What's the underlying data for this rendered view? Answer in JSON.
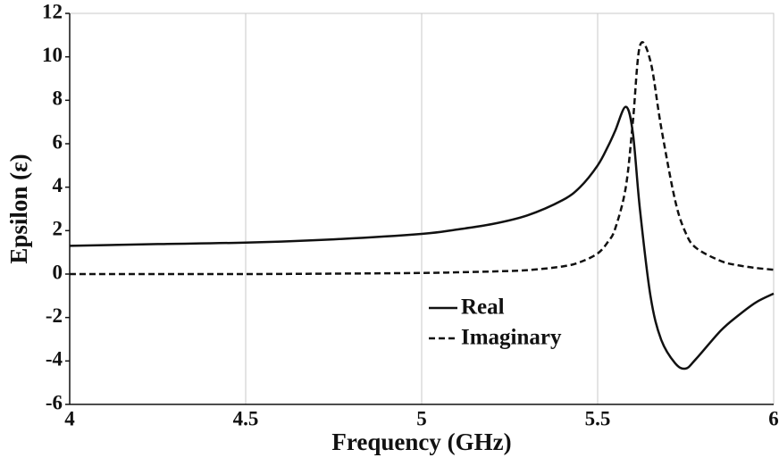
{
  "chart_data": {
    "type": "line",
    "xlabel": "Frequency (GHz)",
    "ylabel": "Epsilon (ε)",
    "x": [
      4,
      4.25,
      4.5,
      4.75,
      5,
      5.1,
      5.2,
      5.3,
      5.4,
      5.45,
      5.5,
      5.53,
      5.55,
      5.58,
      5.6,
      5.62,
      5.65,
      5.68,
      5.72,
      5.75,
      5.78,
      5.85,
      5.9,
      5.95,
      6
    ],
    "series": [
      {
        "name": "Real",
        "color": "#111111",
        "dash": false,
        "values": [
          1.3,
          1.38,
          1.45,
          1.6,
          1.85,
          2.05,
          2.3,
          2.7,
          3.4,
          4.0,
          5.0,
          5.9,
          6.6,
          7.7,
          6.5,
          3.0,
          -1.0,
          -3.0,
          -4.1,
          -4.35,
          -3.9,
          -2.6,
          -1.9,
          -1.3,
          -0.9
        ]
      },
      {
        "name": "Imaginary",
        "color": "#111111",
        "dash": true,
        "values": [
          0,
          0,
          0,
          0.02,
          0.05,
          0.08,
          0.12,
          0.18,
          0.35,
          0.55,
          0.95,
          1.5,
          2.1,
          4.0,
          7.0,
          10.5,
          9.8,
          6.8,
          3.4,
          1.9,
          1.2,
          0.6,
          0.4,
          0.28,
          0.2
        ]
      }
    ],
    "xlim": [
      4,
      6
    ],
    "xticks": [
      4,
      4.5,
      5,
      5.5,
      6
    ],
    "ylim": [
      -6,
      12
    ],
    "yticks": [
      -6,
      -4,
      -2,
      0,
      2,
      4,
      6,
      8,
      10,
      12
    ],
    "grid": "x",
    "legend": "lower center"
  }
}
